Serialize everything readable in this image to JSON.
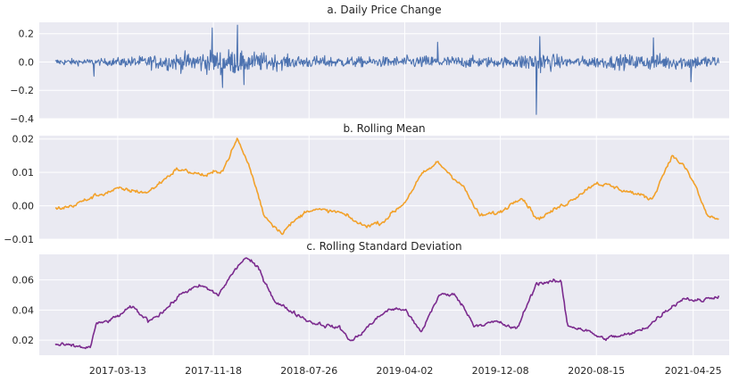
{
  "chart_data": [
    {
      "type": "line",
      "title": "a. Daily Price Change",
      "ylim": [
        -0.4,
        0.28
      ],
      "yticks": [
        0.2,
        0.0,
        -0.2,
        -0.4
      ],
      "ytick_labels": [
        "0.2",
        "0.0",
        "−0.2",
        "−0.4"
      ],
      "grid": true,
      "series": [
        {
          "color": "#4c72b0",
          "style": "noisy",
          "x_range": [
            "2016-10-01",
            "2021-07-01"
          ],
          "y_range": [
            -0.37,
            0.26
          ],
          "x_anchor": [
            "2016-10-01",
            "2017-02-01",
            "2017-06-01",
            "2018-01-01",
            "2018-06-01",
            "2019-01-01",
            "2019-06-01",
            "2020-01-01",
            "2020-03-12",
            "2020-06-01",
            "2021-01-01",
            "2021-07-01"
          ],
          "y_anchor": [
            0.0,
            0.0,
            0.0,
            0.0,
            0.0,
            0.0,
            0.0,
            0.0,
            -0.37,
            0.0,
            0.0,
            0.0
          ],
          "band_anchor": [
            0.02,
            0.02,
            0.04,
            0.08,
            0.04,
            0.03,
            0.04,
            0.03,
            0.07,
            0.03,
            0.05,
            0.04
          ],
          "spikes": [
            {
              "x": "2017-01-10",
              "y": -0.1
            },
            {
              "x": "2017-11-15",
              "y": 0.24
            },
            {
              "x": "2017-12-12",
              "y": -0.18
            },
            {
              "x": "2018-01-20",
              "y": 0.26
            },
            {
              "x": "2018-02-06",
              "y": -0.16
            },
            {
              "x": "2019-06-28",
              "y": 0.14
            },
            {
              "x": "2020-03-12",
              "y": -0.37
            },
            {
              "x": "2020-03-20",
              "y": 0.18
            },
            {
              "x": "2021-01-12",
              "y": 0.17
            },
            {
              "x": "2021-04-20",
              "y": -0.14
            }
          ]
        }
      ]
    },
    {
      "type": "line",
      "title": "b. Rolling Mean",
      "ylim": [
        -0.01,
        0.021
      ],
      "yticks": [
        0.02,
        0.01,
        0.0,
        -0.01
      ],
      "ytick_labels": [
        "0.02",
        "0.01",
        "0.00",
        "−0.01"
      ],
      "grid": true,
      "series": [
        {
          "color": "#f2a12a",
          "style": "smooth",
          "x": [
            "2016-10-01",
            "2016-11-15",
            "2017-01-15",
            "2017-03-13",
            "2017-06-01",
            "2017-08-15",
            "2017-11-01",
            "2017-12-15",
            "2018-01-20",
            "2018-02-20",
            "2018-04-01",
            "2018-05-15",
            "2018-07-26",
            "2018-10-15",
            "2018-12-15",
            "2019-02-01",
            "2019-04-02",
            "2019-05-15",
            "2019-06-28",
            "2019-09-01",
            "2019-10-15",
            "2019-12-08",
            "2020-02-01",
            "2020-03-15",
            "2020-06-01",
            "2020-08-15",
            "2020-11-15",
            "2021-01-08",
            "2021-02-28",
            "2021-04-01",
            "2021-05-01",
            "2021-06-01",
            "2021-07-01"
          ],
          "y": [
            -0.001,
            0.0,
            0.003,
            0.005,
            0.004,
            0.011,
            0.009,
            0.011,
            0.02,
            0.012,
            -0.003,
            -0.008,
            -0.001,
            -0.002,
            -0.006,
            -0.005,
            0.001,
            0.009,
            0.013,
            0.006,
            -0.003,
            -0.002,
            0.003,
            -0.004,
            0.001,
            0.007,
            0.004,
            0.002,
            0.015,
            0.012,
            0.006,
            -0.003,
            -0.004
          ]
        }
      ]
    },
    {
      "type": "line",
      "title": "c. Rolling Standard Deviation",
      "ylim": [
        0.01,
        0.077
      ],
      "yticks": [
        0.06,
        0.04,
        0.02
      ],
      "ytick_labels": [
        "0.06",
        "0.04",
        "0.02"
      ],
      "xticks": [
        "2017-03-13",
        "2017-11-18",
        "2018-07-26",
        "2019-04-02",
        "2019-12-08",
        "2020-08-15",
        "2021-04-25"
      ],
      "grid": true,
      "series": [
        {
          "color": "#7b2b8e",
          "style": "smooth",
          "x": [
            "2016-10-01",
            "2016-11-15",
            "2017-01-01",
            "2017-01-15",
            "2017-03-01",
            "2017-04-20",
            "2017-06-01",
            "2017-07-15",
            "2017-09-01",
            "2017-10-20",
            "2017-12-01",
            "2018-01-15",
            "2018-02-10",
            "2018-03-15",
            "2018-05-01",
            "2018-08-01",
            "2018-10-15",
            "2018-11-15",
            "2019-01-01",
            "2019-02-15",
            "2019-04-01",
            "2019-05-15",
            "2019-07-01",
            "2019-08-15",
            "2019-10-01",
            "2019-12-01",
            "2020-01-20",
            "2020-03-12",
            "2020-05-15",
            "2020-06-01",
            "2020-07-15",
            "2020-09-01",
            "2020-11-15",
            "2021-01-01",
            "2021-02-15",
            "2021-04-01",
            "2021-05-15",
            "2021-07-01"
          ],
          "y": [
            0.017,
            0.016,
            0.015,
            0.03,
            0.034,
            0.042,
            0.033,
            0.04,
            0.052,
            0.056,
            0.05,
            0.067,
            0.075,
            0.068,
            0.045,
            0.032,
            0.028,
            0.019,
            0.03,
            0.04,
            0.041,
            0.025,
            0.05,
            0.05,
            0.03,
            0.032,
            0.027,
            0.058,
            0.059,
            0.03,
            0.027,
            0.021,
            0.024,
            0.03,
            0.04,
            0.048,
            0.046,
            0.05
          ]
        }
      ]
    }
  ]
}
